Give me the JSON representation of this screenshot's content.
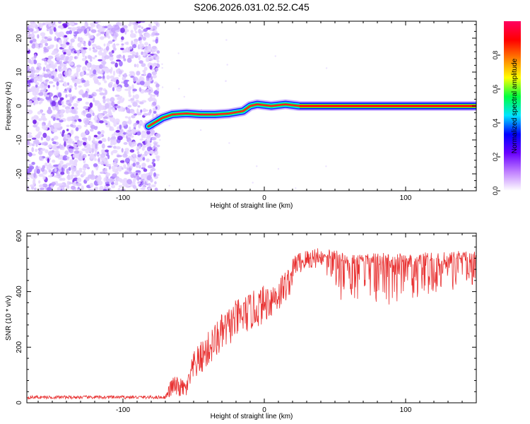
{
  "title": "S206.2026.031.02.52.C45",
  "chart_data": [
    {
      "type": "heatmap",
      "title": "S206.2026.031.02.52.C45",
      "xlabel": "Height of straight line (km)",
      "ylabel": "Frequency (Hz)",
      "xlim": [
        -168,
        150
      ],
      "ylim": [
        -25,
        25
      ],
      "xticks": [
        -100,
        0,
        100
      ],
      "yticks": [
        -20,
        -10,
        0,
        10,
        20
      ],
      "colorbar": {
        "label": "Normalized spectral amplitude",
        "range": [
          0,
          1
        ],
        "ticks": [
          "0.0",
          "0.2",
          "0.4",
          "0.6",
          "0.8"
        ],
        "colors": [
          "#ffffff",
          "#c080ff",
          "#6a00ff",
          "#0000ff",
          "#00e5ff",
          "#00ff40",
          "#ffff00",
          "#ff8000",
          "#ff0000",
          "#ff0060"
        ]
      },
      "noise_region_x": [
        -168,
        -75
      ],
      "ridge": [
        {
          "x": -82,
          "y": -6
        },
        {
          "x": -78,
          "y": -5
        },
        {
          "x": -72,
          "y": -3.5
        },
        {
          "x": -65,
          "y": -2.5
        },
        {
          "x": -55,
          "y": -2.2
        },
        {
          "x": -45,
          "y": -2.5
        },
        {
          "x": -35,
          "y": -2.5
        },
        {
          "x": -25,
          "y": -2.2
        },
        {
          "x": -15,
          "y": -1.5
        },
        {
          "x": -10,
          "y": 0
        },
        {
          "x": -5,
          "y": 0.5
        },
        {
          "x": 5,
          "y": 0
        },
        {
          "x": 15,
          "y": 0.5
        },
        {
          "x": 25,
          "y": 0
        },
        {
          "x": 150,
          "y": 0
        }
      ]
    },
    {
      "type": "line",
      "title": "",
      "xlabel": "Height of straight line (km)",
      "ylabel": "SNR (10 * v/v)",
      "xlim": [
        -168,
        150
      ],
      "ylim": [
        0,
        610
      ],
      "xticks": [
        -100,
        0,
        100
      ],
      "yticks": [
        0,
        200,
        400,
        600
      ],
      "series_color": "#e83030",
      "envelope": [
        {
          "x": -168,
          "base": 20,
          "spread": 12
        },
        {
          "x": -70,
          "base": 20,
          "spread": 12
        },
        {
          "x": -65,
          "base": 60,
          "spread": 80
        },
        {
          "x": -55,
          "base": 50,
          "spread": 60
        },
        {
          "x": -50,
          "base": 130,
          "spread": 110
        },
        {
          "x": -40,
          "base": 190,
          "spread": 130
        },
        {
          "x": -30,
          "base": 250,
          "spread": 140
        },
        {
          "x": -20,
          "base": 300,
          "spread": 140
        },
        {
          "x": -5,
          "base": 340,
          "spread": 140
        },
        {
          "x": 10,
          "base": 390,
          "spread": 130
        },
        {
          "x": 18,
          "base": 440,
          "spread": 110
        },
        {
          "x": 22,
          "base": 500,
          "spread": 80
        },
        {
          "x": 40,
          "base": 530,
          "spread": 80
        },
        {
          "x": 60,
          "base": 510,
          "spread": 180
        },
        {
          "x": 100,
          "base": 510,
          "spread": 180
        },
        {
          "x": 150,
          "base": 520,
          "spread": 100
        }
      ]
    }
  ]
}
